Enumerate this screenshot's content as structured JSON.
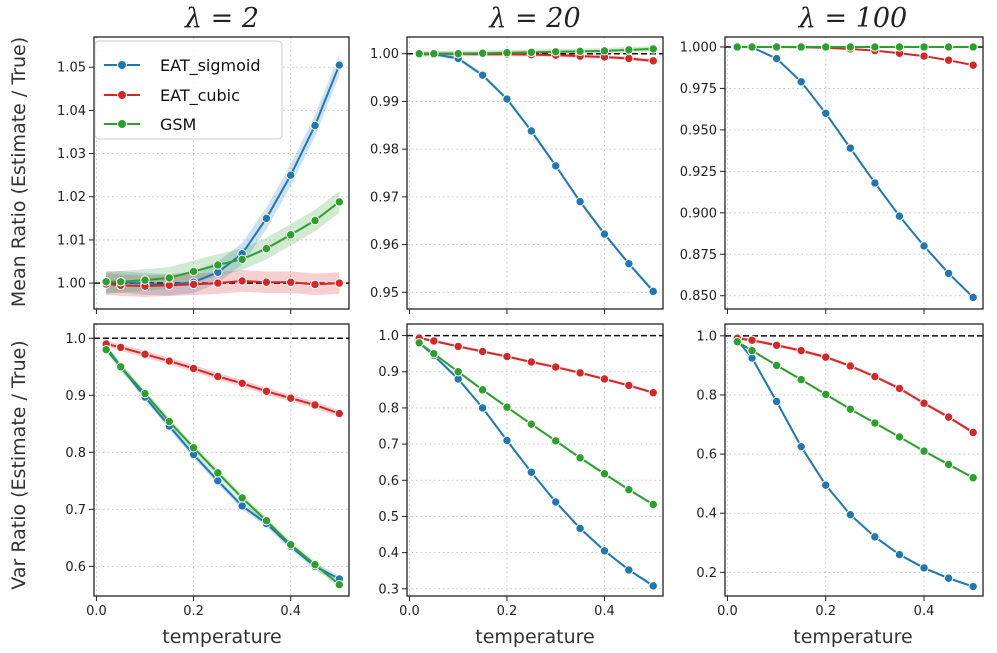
{
  "figure": {
    "xlabel": "temperature",
    "ylabel_top": "Mean Ratio (Estimate / True)",
    "ylabel_bottom": "Var Ratio (Estimate / True)"
  },
  "colors": {
    "EAT_sigmoid": "#1f77b4",
    "EAT_cubic": "#d62728",
    "GSM": "#2ca02c",
    "reference": "#111111"
  },
  "legend": [
    "EAT_sigmoid",
    "EAT_cubic",
    "GSM"
  ],
  "chart_data": [
    {
      "type": "line",
      "title": "λ = 2",
      "row": "mean",
      "x": [
        0.02,
        0.05,
        0.1,
        0.15,
        0.2,
        0.25,
        0.3,
        0.35,
        0.4,
        0.45,
        0.5
      ],
      "ylim": [
        0.994,
        1.057
      ],
      "xlim": [
        -0.005,
        0.52
      ],
      "yticks": [
        1.0,
        1.01,
        1.02,
        1.03,
        1.04,
        1.05
      ],
      "ytick_labels": [
        "1.00",
        "1.01",
        "1.02",
        "1.03",
        "1.04",
        "1.05"
      ],
      "xticks": [
        0.0,
        0.2,
        0.4
      ],
      "xtick_labels": [
        "0.0",
        "0.2",
        "0.4"
      ],
      "reference_line": 1.0,
      "grid": true,
      "legend": "top-left",
      "series": [
        {
          "name": "EAT_sigmoid",
          "values": [
            1.0,
            1.0003,
            0.9998,
            0.9996,
            1.0002,
            1.0025,
            1.0068,
            1.015,
            1.025,
            1.0365,
            1.0505
          ],
          "band": 0.0025
        },
        {
          "name": "EAT_cubic",
          "values": [
            0.9998,
            0.9995,
            0.9993,
            0.9995,
            0.9997,
            1.0,
            1.0005,
            1.0002,
            1.0002,
            0.9997,
            1.0
          ],
          "band": 0.0025
        },
        {
          "name": "GSM",
          "values": [
            1.0003,
            1.0003,
            1.0007,
            1.0012,
            1.0027,
            1.0042,
            1.0055,
            1.008,
            1.0112,
            1.0145,
            1.0188
          ],
          "band": 0.0025
        }
      ]
    },
    {
      "type": "line",
      "title": "λ = 20",
      "row": "mean",
      "x": [
        0.02,
        0.05,
        0.1,
        0.15,
        0.2,
        0.25,
        0.3,
        0.35,
        0.4,
        0.45,
        0.5
      ],
      "ylim": [
        0.9465,
        1.0035
      ],
      "xlim": [
        -0.005,
        0.52
      ],
      "yticks": [
        0.95,
        0.96,
        0.97,
        0.98,
        0.99,
        1.0
      ],
      "ytick_labels": [
        "0.95",
        "0.96",
        "0.97",
        "0.98",
        "0.99",
        "1.00"
      ],
      "xticks": [
        0.0,
        0.2,
        0.4
      ],
      "xtick_labels": [
        "0.0",
        "0.2",
        "0.4"
      ],
      "reference_line": 1.0,
      "grid": true,
      "series": [
        {
          "name": "EAT_sigmoid",
          "values": [
            1.0,
            0.9999,
            0.999,
            0.9955,
            0.9905,
            0.9838,
            0.9765,
            0.969,
            0.9622,
            0.956,
            0.9502
          ],
          "band": 0.0004
        },
        {
          "name": "EAT_cubic",
          "values": [
            0.9999,
            1.0,
            1.0,
            0.9999,
            0.9999,
            0.9998,
            0.9997,
            0.9995,
            0.9993,
            0.999,
            0.9985
          ],
          "band": 0.0004
        },
        {
          "name": "GSM",
          "values": [
            1.0,
            1.0,
            1.0,
            1.0001,
            1.0002,
            1.0003,
            1.0004,
            1.0005,
            1.0006,
            1.0008,
            1.001
          ],
          "band": 0.0006
        }
      ]
    },
    {
      "type": "line",
      "title": "λ = 100",
      "row": "mean",
      "x": [
        0.02,
        0.05,
        0.1,
        0.15,
        0.2,
        0.25,
        0.3,
        0.35,
        0.4,
        0.45,
        0.5
      ],
      "ylim": [
        0.842,
        1.006
      ],
      "xlim": [
        -0.005,
        0.52
      ],
      "yticks": [
        0.85,
        0.875,
        0.9,
        0.925,
        0.95,
        0.975,
        1.0
      ],
      "ytick_labels": [
        "0.850",
        "0.875",
        "0.900",
        "0.925",
        "0.950",
        "0.975",
        "1.000"
      ],
      "xticks": [
        0.0,
        0.2,
        0.4
      ],
      "xtick_labels": [
        "0.0",
        "0.2",
        "0.4"
      ],
      "reference_line": 1.0,
      "grid": true,
      "series": [
        {
          "name": "EAT_sigmoid",
          "values": [
            1.0,
            0.9998,
            0.993,
            0.979,
            0.96,
            0.939,
            0.918,
            0.898,
            0.88,
            0.8635,
            0.849
          ],
          "band": 0.0005
        },
        {
          "name": "EAT_cubic",
          "values": [
            1.0,
            1.0,
            1.0,
            0.9998,
            0.9995,
            0.9988,
            0.9978,
            0.9962,
            0.9945,
            0.992,
            0.989
          ],
          "band": 0.0005
        },
        {
          "name": "GSM",
          "values": [
            1.0,
            1.0,
            1.0,
            1.0,
            1.0,
            1.0,
            1.0,
            1.0,
            1.0,
            1.0,
            1.0
          ],
          "band": 0.0003
        }
      ]
    },
    {
      "type": "line",
      "title": "",
      "row": "var",
      "x": [
        0.02,
        0.05,
        0.1,
        0.15,
        0.2,
        0.25,
        0.3,
        0.35,
        0.4,
        0.45,
        0.5
      ],
      "ylim": [
        0.548,
        1.025
      ],
      "xlim": [
        -0.005,
        0.52
      ],
      "yticks": [
        0.6,
        0.7,
        0.8,
        0.9,
        1.0
      ],
      "ytick_labels": [
        "0.6",
        "0.7",
        "0.8",
        "0.9",
        "1.0"
      ],
      "xticks": [
        0.0,
        0.2,
        0.4
      ],
      "xtick_labels": [
        "0.0",
        "0.2",
        "0.4"
      ],
      "reference_line": 1.0,
      "grid": true,
      "series": [
        {
          "name": "EAT_sigmoid",
          "values": [
            0.985,
            0.95,
            0.897,
            0.846,
            0.796,
            0.75,
            0.706,
            0.675,
            0.635,
            0.6,
            0.578
          ],
          "band": 0.006
        },
        {
          "name": "EAT_cubic",
          "values": [
            0.99,
            0.984,
            0.972,
            0.96,
            0.947,
            0.933,
            0.921,
            0.907,
            0.895,
            0.883,
            0.868
          ],
          "band": 0.006
        },
        {
          "name": "GSM",
          "values": [
            0.98,
            0.95,
            0.903,
            0.854,
            0.808,
            0.764,
            0.72,
            0.68,
            0.638,
            0.603,
            0.568
          ],
          "band": 0.006
        }
      ]
    },
    {
      "type": "line",
      "title": "",
      "row": "var",
      "x": [
        0.02,
        0.05,
        0.1,
        0.15,
        0.2,
        0.25,
        0.3,
        0.35,
        0.4,
        0.45,
        0.5
      ],
      "ylim": [
        0.28,
        1.032
      ],
      "xlim": [
        -0.005,
        0.52
      ],
      "yticks": [
        0.3,
        0.4,
        0.5,
        0.6,
        0.7,
        0.8,
        0.9,
        1.0
      ],
      "ytick_labels": [
        "0.3",
        "0.4",
        "0.5",
        "0.6",
        "0.7",
        "0.8",
        "0.9",
        "1.0"
      ],
      "xticks": [
        0.0,
        0.2,
        0.4
      ],
      "xtick_labels": [
        "0.0",
        "0.2",
        "0.4"
      ],
      "reference_line": 1.0,
      "grid": true,
      "series": [
        {
          "name": "EAT_sigmoid",
          "values": [
            0.98,
            0.945,
            0.88,
            0.8,
            0.71,
            0.622,
            0.54,
            0.467,
            0.405,
            0.352,
            0.308
          ],
          "band": 0.004
        },
        {
          "name": "EAT_cubic",
          "values": [
            0.993,
            0.985,
            0.97,
            0.956,
            0.942,
            0.927,
            0.913,
            0.897,
            0.88,
            0.862,
            0.842
          ],
          "band": 0.004
        },
        {
          "name": "GSM",
          "values": [
            0.98,
            0.95,
            0.9,
            0.85,
            0.802,
            0.755,
            0.709,
            0.662,
            0.618,
            0.574,
            0.533
          ],
          "band": 0.004
        }
      ]
    },
    {
      "type": "line",
      "title": "",
      "row": "var",
      "x": [
        0.02,
        0.05,
        0.1,
        0.15,
        0.2,
        0.25,
        0.3,
        0.35,
        0.4,
        0.45,
        0.5
      ],
      "ylim": [
        0.12,
        1.04
      ],
      "xlim": [
        -0.005,
        0.52
      ],
      "yticks": [
        0.2,
        0.4,
        0.6,
        0.8,
        1.0
      ],
      "ytick_labels": [
        "0.2",
        "0.4",
        "0.6",
        "0.8",
        "1.0"
      ],
      "xticks": [
        0.0,
        0.2,
        0.4
      ],
      "xtick_labels": [
        "0.0",
        "0.2",
        "0.4"
      ],
      "reference_line": 1.0,
      "grid": true,
      "series": [
        {
          "name": "EAT_sigmoid",
          "values": [
            0.985,
            0.925,
            0.778,
            0.625,
            0.495,
            0.395,
            0.32,
            0.26,
            0.215,
            0.18,
            0.152
          ],
          "band": 0.004
        },
        {
          "name": "EAT_cubic",
          "values": [
            0.992,
            0.985,
            0.968,
            0.95,
            0.928,
            0.898,
            0.862,
            0.822,
            0.772,
            0.725,
            0.673
          ],
          "band": 0.006
        },
        {
          "name": "GSM",
          "values": [
            0.98,
            0.95,
            0.9,
            0.852,
            0.802,
            0.752,
            0.705,
            0.658,
            0.61,
            0.565,
            0.52
          ],
          "band": 0.004
        }
      ]
    }
  ]
}
